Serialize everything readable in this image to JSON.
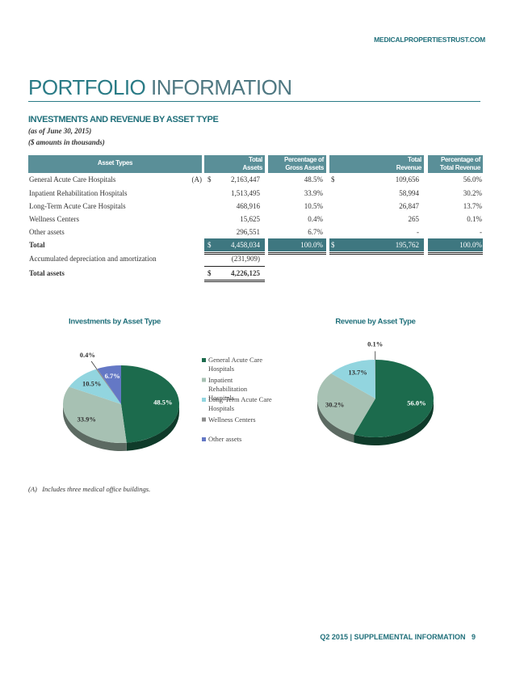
{
  "header": {
    "site": "MEDICALPROPERTIESTRUST.COM",
    "title": [
      "PORTFOLIO",
      "INFORMATION"
    ]
  },
  "section": {
    "title": "INVESTMENTS AND REVENUE BY ASSET TYPE",
    "notes": [
      "(as of June 30, 2015)",
      "($ amounts in thousands)"
    ]
  },
  "table": {
    "headers": [
      [
        "Asset Types"
      ],
      [
        "Total",
        "Assets"
      ],
      [
        "Percentage of",
        "Gross Assets"
      ],
      [
        "Total",
        "Revenue"
      ],
      [
        "Percentage of",
        "Total Revenue"
      ]
    ],
    "rows": [
      {
        "label": "General Acute Care Hospitals",
        "note": "(A)",
        "assets_sign": "$",
        "assets": "2,163,447",
        "gross_pct": "48.5%",
        "revenue_sign": "$",
        "revenue": "109,656",
        "revenue_pct": "56.0%"
      },
      {
        "label": "Inpatient Rehabilitation Hospitals",
        "assets": "1,513,495",
        "gross_pct": "33.9%",
        "revenue": "58,994",
        "revenue_pct": "30.2%"
      },
      {
        "label": "Long-Term Acute Care Hospitals",
        "assets": "468,916",
        "gross_pct": "10.5%",
        "revenue": "26,847",
        "revenue_pct": "13.7%"
      },
      {
        "label": "Wellness Centers",
        "assets": "15,625",
        "gross_pct": "0.4%",
        "revenue": "265",
        "revenue_pct": "0.1%"
      },
      {
        "label": "Other assets",
        "assets": "296,551",
        "gross_pct": "6.7%",
        "revenue": "-",
        "revenue_pct": "-"
      },
      {
        "label": "Total",
        "style": "highlight",
        "assets_sign": "$",
        "assets": "4,458,034",
        "gross_pct": "100.0%",
        "revenue_sign": "$",
        "revenue": "195,762",
        "revenue_pct": "100.0%"
      },
      {
        "label": "Accumulated depreciation and amortization",
        "assets": "(231,909)"
      },
      {
        "label": "Total assets",
        "style": "bold",
        "assets_sign": "$",
        "assets": "4,226,125"
      }
    ]
  },
  "chart_data": [
    {
      "type": "pie",
      "title": "Investments by Asset Type",
      "categories": [
        "General Acute Care Hospitals",
        "Inpatient Rehabilitation Hospitals",
        "Long-Term Acute Care Hospitals",
        "Wellness Centers",
        "Other assets"
      ],
      "values": [
        48.5,
        33.9,
        10.5,
        0.4,
        6.7
      ],
      "value_labels": [
        "48.5%",
        "33.9%",
        "10.5%",
        "0.4%",
        "6.7%"
      ],
      "colors": [
        "#1c6b4d",
        "#a7c1b3",
        "#92d5df",
        "#8c8c8c",
        "#6478c5"
      ]
    },
    {
      "type": "pie",
      "title": "Revenue by Asset Type",
      "values": [
        56.0,
        30.2,
        13.7,
        0.1
      ],
      "value_labels": [
        "56.0%",
        "30.2%",
        "13.7%",
        "0.1%"
      ],
      "colors": [
        "#1c6b4d",
        "#a7c1b3",
        "#92d5df",
        "#8c8c8c"
      ]
    }
  ],
  "footnote": "(A)   Includes three medical office buildings.",
  "footer": {
    "text": "Q2 2015 | SUPPLEMENTAL INFORMATION",
    "page": "9"
  }
}
